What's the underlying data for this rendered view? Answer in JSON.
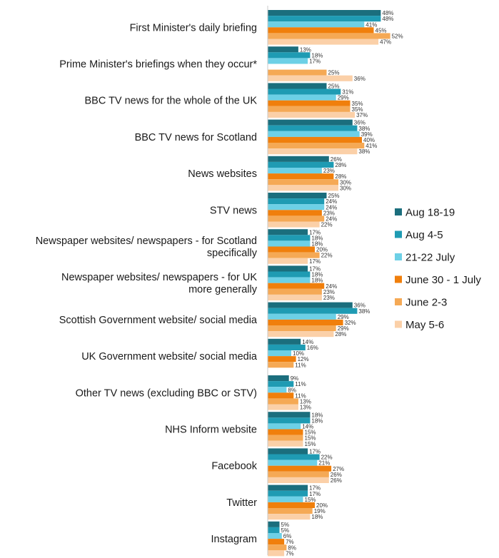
{
  "chart_data": {
    "type": "bar",
    "orientation": "horizontal",
    "categories": [
      "First Minister's daily briefing",
      "Prime Minister's briefings when they occur*",
      "BBC TV news for the whole of the UK",
      "BBC TV news for Scotland",
      "News websites",
      "STV news",
      "Newspaper websites/ newspapers - for Scotland specifically",
      "Newspaper websites/ newspapers - for UK more generally",
      "Scottish Government website/ social media",
      "UK Government website/ social media",
      "Other TV news (excluding BBC or STV)",
      "NHS Inform website",
      "Facebook",
      "Twitter",
      "Instagram"
    ],
    "category_lines": [
      [
        "First Minister's daily briefing"
      ],
      [
        "Prime Minister's briefings when they occur*"
      ],
      [
        "BBC TV news for the whole of the UK"
      ],
      [
        "BBC TV news for Scotland"
      ],
      [
        "News websites"
      ],
      [
        "STV news"
      ],
      [
        "Newspaper websites/ newspapers - for Scotland",
        "specifically"
      ],
      [
        "Newspaper websites/ newspapers - for UK",
        "more generally"
      ],
      [
        "Scottish Government website/ social media"
      ],
      [
        "UK Government website/ social media"
      ],
      [
        "Other TV news (excluding BBC or STV)"
      ],
      [
        "NHS Inform website"
      ],
      [
        "Facebook"
      ],
      [
        "Twitter"
      ],
      [
        "Instagram"
      ]
    ],
    "series": [
      {
        "name": "Aug 18-19",
        "color": "#1b6e7d",
        "values": [
          48,
          13,
          25,
          36,
          26,
          25,
          17,
          17,
          36,
          14,
          9,
          18,
          17,
          17,
          5
        ]
      },
      {
        "name": "Aug 4-5",
        "color": "#1f9bb3",
        "values": [
          48,
          18,
          31,
          38,
          28,
          24,
          18,
          18,
          38,
          16,
          11,
          18,
          22,
          17,
          5
        ]
      },
      {
        "name": "21-22 July",
        "color": "#6dd0e6",
        "values": [
          41,
          17,
          29,
          39,
          23,
          24,
          18,
          18,
          29,
          10,
          8,
          14,
          21,
          15,
          6
        ]
      },
      {
        "name": "June 30 - 1 July",
        "color": "#f07f0c",
        "values": [
          45,
          null,
          35,
          40,
          28,
          23,
          20,
          24,
          32,
          12,
          11,
          15,
          27,
          20,
          7
        ]
      },
      {
        "name": " June 2-3",
        "color": "#f5a955",
        "values": [
          52,
          25,
          35,
          41,
          30,
          24,
          22,
          23,
          29,
          11,
          13,
          15,
          26,
          19,
          8
        ]
      },
      {
        "name": "May 5-6",
        "color": "#fbd0a8",
        "values": [
          47,
          36,
          37,
          38,
          30,
          22,
          17,
          23,
          28,
          null,
          13,
          15,
          26,
          18,
          7
        ]
      }
    ],
    "value_suffix": "%",
    "xlim": [
      0,
      100
    ],
    "axis_line": true,
    "grid": false,
    "legend_position": "right"
  }
}
